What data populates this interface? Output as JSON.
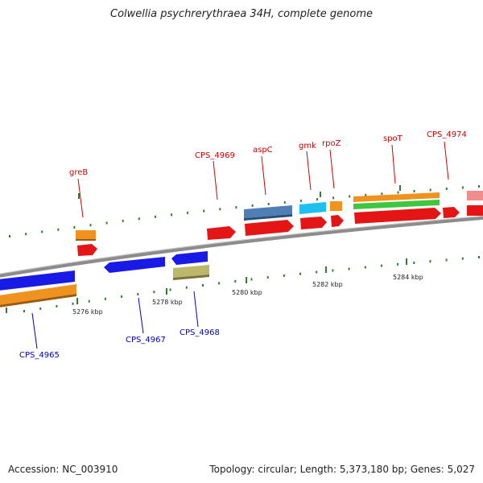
{
  "title": "Colwellia psychrerythraea 34H, complete genome",
  "footer": {
    "accession": "Accession: NC_003910",
    "stats": "Topology: circular; Length: 5,373,180 bp; Genes: 5,027"
  },
  "colors": {
    "forward_label": "#cc0000",
    "reverse_label": "#0000bb",
    "backbone": "#8c8c8c",
    "tick": "#2e7d32"
  },
  "ticks": [
    "5276 kbp",
    "5278 kbp",
    "5280 kbp",
    "5282 kbp",
    "5284 kbp"
  ],
  "forward_labels": [
    "greB",
    "CPS_4969",
    "aspC",
    "gmk",
    "rpoZ",
    "spoT",
    "CPS_4974"
  ],
  "reverse_labels": [
    "CPS_4965",
    "CPS_4967",
    "CPS_4968"
  ]
}
